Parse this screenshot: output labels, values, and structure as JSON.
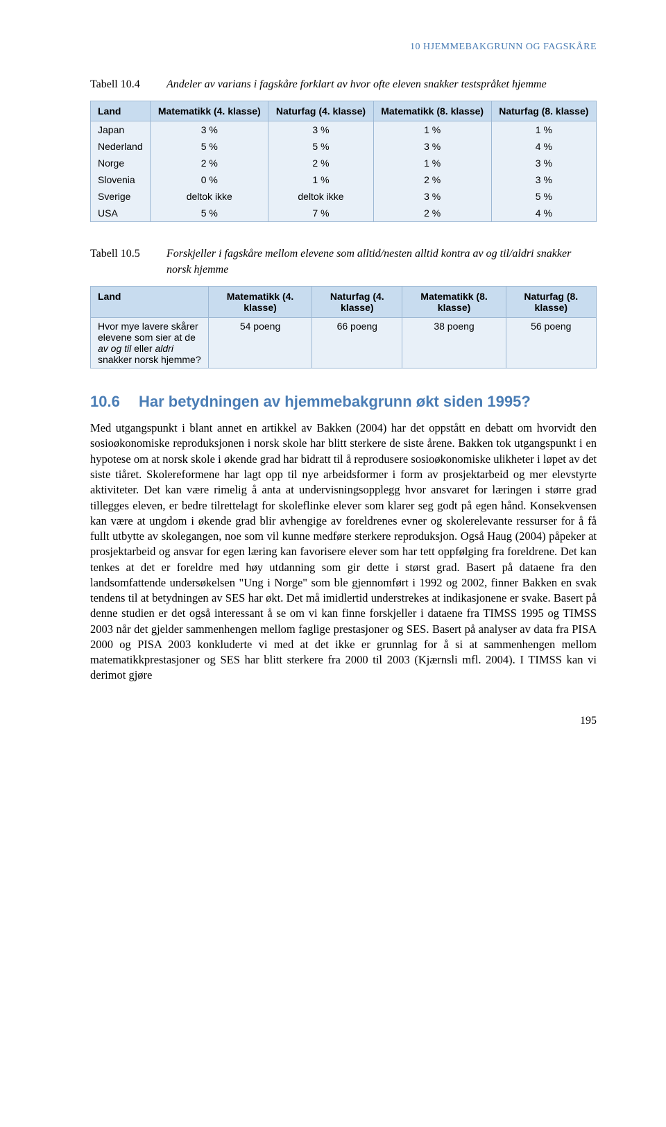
{
  "header": {
    "text": "10 HJEMMEBAKGRUNN OG FAGSKÅRE",
    "color": "#4a7db5"
  },
  "table104": {
    "number": "Tabell 10.4",
    "title": "Andeler av varians i fagskåre forklart av hvor ofte eleven snakker testspråket hjemme",
    "bg_header": "#c8dcef",
    "bg_body": "#e8f0f8",
    "border_color": "#9db8d4",
    "columns": [
      "Land",
      "Matematikk (4. klasse)",
      "Naturfag (4. klasse)",
      "Matematikk (8. klasse)",
      "Naturfag (8. klasse)"
    ],
    "rows": [
      [
        "Japan",
        "3 %",
        "3 %",
        "1 %",
        "1 %"
      ],
      [
        "Nederland",
        "5 %",
        "5 %",
        "3 %",
        "4 %"
      ],
      [
        "Norge",
        "2 %",
        "2 %",
        "1 %",
        "3 %"
      ],
      [
        "Slovenia",
        "0 %",
        "1 %",
        "2 %",
        "3 %"
      ],
      [
        "Sverige",
        "deltok ikke",
        "deltok ikke",
        "3 %",
        "5 %"
      ],
      [
        "USA",
        "5 %",
        "7 %",
        "2 %",
        "4 %"
      ]
    ]
  },
  "table105": {
    "number": "Tabell 10.5",
    "title": "Forskjeller i fagskåre mellom elevene som alltid/nesten alltid kontra av og til/aldri snakker norsk hjemme",
    "bg_header": "#c8dcef",
    "bg_body": "#e8f0f8",
    "border_color": "#9db8d4",
    "columns": [
      "Land",
      "Matematikk (4. klasse)",
      "Naturfag (4. klasse)",
      "Matematikk (8. klasse)",
      "Naturfag (8. klasse)"
    ],
    "row_label_html": "Hvor mye lavere skårer elevene som sier at de <i>av og til</i> eller <i>aldri</i> snakker norsk hjemme?",
    "row_values": [
      "54 poeng",
      "66 poeng",
      "38 poeng",
      "56 poeng"
    ]
  },
  "section": {
    "number": "10.6",
    "title": "Har betydningen av hjemmebakgrunn økt siden 1995?",
    "color": "#4a7db5"
  },
  "body": "Med utgangspunkt i blant annet en artikkel av Bakken (2004) har det oppstått en debatt om hvorvidt den sosioøkonomiske reproduksjonen i norsk skole har blitt sterkere de siste årene. Bakken tok utgangspunkt i en hypotese om at norsk skole i økende grad har bidratt til å reprodusere sosioøkonomiske ulikheter i løpet av det siste tiåret. Skolereformene har lagt opp til nye arbeidsformer i form av prosjektarbeid og mer elevstyrte aktiviteter. Det kan være rimelig å anta at undervisningsopplegg hvor ansvaret for læringen i større grad tillegges eleven, er bedre tilrettelagt for skoleflinke elever som klarer seg godt på egen hånd. Konsekvensen kan være at ungdom i økende grad blir avhengige av foreldrenes evner og skolerelevante ressurser for å få fullt utbytte av skolegangen, noe som vil kunne medføre sterkere reproduksjon. Også Haug (2004) påpeker at prosjektarbeid og ansvar for egen læring kan favorisere elever som har tett oppfølging fra foreldrene. Det kan tenkes at det er foreldre med høy utdanning som gir dette i størst grad. Basert på dataene fra den landsomfattende undersøkelsen \"Ung i Norge\" som ble gjennomført i 1992 og 2002, finner Bakken en svak tendens til at betydningen av SES har økt. Det må imidlertid understrekes at indikasjonene er svake. Basert på denne studien er det også interessant å se om vi kan finne forskjeller i dataene fra TIMSS 1995 og TIMSS 2003 når det gjelder sammenhengen mellom faglige prestasjoner og SES. Basert på analyser av data fra PISA 2000 og PISA 2003 konkluderte vi med at det ikke er grunnlag for å si at sammenhengen mellom matematikkprestasjoner og SES har blitt sterkere fra 2000 til 2003 (Kjærnsli mfl. 2004). I TIMSS kan vi derimot gjøre",
  "page_number": "195"
}
